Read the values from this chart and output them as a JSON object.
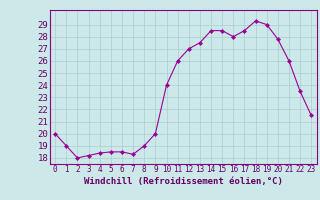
{
  "x": [
    0,
    1,
    2,
    3,
    4,
    5,
    6,
    7,
    8,
    9,
    10,
    11,
    12,
    13,
    14,
    15,
    16,
    17,
    18,
    19,
    20,
    21,
    22,
    23
  ],
  "y": [
    20.0,
    19.0,
    18.0,
    18.2,
    18.4,
    18.5,
    18.5,
    18.3,
    19.0,
    20.0,
    24.0,
    26.0,
    27.0,
    27.5,
    28.5,
    28.5,
    28.0,
    28.5,
    29.3,
    29.0,
    27.8,
    26.0,
    23.5,
    21.5
  ],
  "line_color": "#990099",
  "marker_color": "#990099",
  "bg_color": "#cce8e8",
  "grid_color": "#aacece",
  "xlabel": "Windchill (Refroidissement éolien,°C)",
  "ylim": [
    17.5,
    30.2
  ],
  "xlim": [
    -0.5,
    23.5
  ],
  "yticks": [
    18,
    19,
    20,
    21,
    22,
    23,
    24,
    25,
    26,
    27,
    28,
    29
  ],
  "xticks": [
    0,
    1,
    2,
    3,
    4,
    5,
    6,
    7,
    8,
    9,
    10,
    11,
    12,
    13,
    14,
    15,
    16,
    17,
    18,
    19,
    20,
    21,
    22,
    23
  ],
  "xlabel_fontsize": 6.5,
  "ytick_fontsize": 6.5,
  "xtick_fontsize": 5.5,
  "spine_color": "#880088"
}
